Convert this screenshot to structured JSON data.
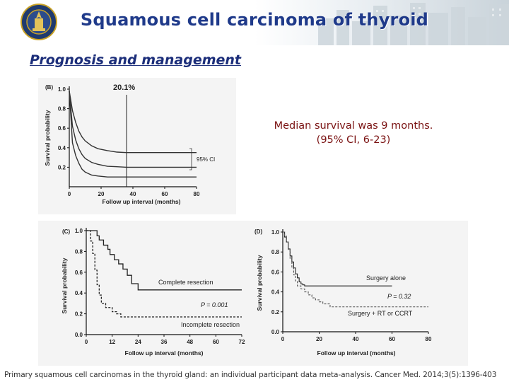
{
  "slide": {
    "title": "Squamous cell carcinoma of thyroid",
    "subtitle": "Prognosis and management",
    "stats": [
      "Median survival was 9 months.",
      "(95% CI, 6-23)"
    ],
    "citation": "Primary squamous cell carcinomas in the thyroid gland: an individual participant data meta-analysis. Cancer Med. 2014;3(5):1396-403"
  },
  "chart_data": [
    {
      "type": "line",
      "panel_label": "(B)",
      "annotation": "20.1%",
      "ci_label": "95% CI",
      "xlabel": "Follow up interval (months)",
      "ylabel": "Survival probability",
      "xlim": [
        0,
        80
      ],
      "ylim": [
        0,
        1.0
      ],
      "x_ticks": [
        "0",
        "20",
        "40",
        "60",
        "80"
      ],
      "y_ticks": [
        "0.2",
        "0.4",
        "0.6",
        "0.8",
        "1.0"
      ],
      "vertical_line_x": 36,
      "series": [
        {
          "x": [
            0,
            2,
            4,
            6,
            8,
            10,
            14,
            18,
            24,
            30,
            36,
            44,
            52,
            60,
            72,
            80
          ],
          "y": [
            0.98,
            0.78,
            0.66,
            0.57,
            0.51,
            0.47,
            0.42,
            0.39,
            0.37,
            0.355,
            0.35,
            0.35,
            0.35,
            0.35,
            0.35,
            0.35
          ]
        },
        {
          "x": [
            0,
            2,
            4,
            6,
            8,
            10,
            14,
            18,
            24,
            30,
            36,
            44,
            52,
            60,
            72,
            80
          ],
          "y": [
            0.98,
            0.62,
            0.48,
            0.39,
            0.33,
            0.29,
            0.25,
            0.23,
            0.21,
            0.205,
            0.2,
            0.2,
            0.2,
            0.2,
            0.2,
            0.2
          ]
        },
        {
          "x": [
            0,
            2,
            4,
            6,
            8,
            10,
            14,
            18,
            24,
            30,
            36,
            44,
            52,
            60,
            72,
            80
          ],
          "y": [
            0.98,
            0.45,
            0.32,
            0.24,
            0.18,
            0.15,
            0.12,
            0.11,
            0.1,
            0.1,
            0.1,
            0.1,
            0.1,
            0.1,
            0.1,
            0.1
          ]
        }
      ]
    },
    {
      "type": "line",
      "panel_label": "(C)",
      "xlabel": "Follow up interval (months)",
      "ylabel": "Survival probability",
      "xlim": [
        0,
        72
      ],
      "ylim": [
        0,
        1.0
      ],
      "x_ticks": [
        "0",
        "12",
        "24",
        "36",
        "48",
        "60",
        "72"
      ],
      "y_ticks": [
        "0.0",
        "0.2",
        "0.4",
        "0.6",
        "0.8",
        "1.0"
      ],
      "p_value": "P = 0.001",
      "series": [
        {
          "name": "Complete resection",
          "style": "solid",
          "x": [
            0,
            2,
            5,
            6,
            8,
            10,
            11,
            13,
            15,
            17,
            19,
            21,
            24,
            36,
            72
          ],
          "y": [
            1.0,
            1.0,
            0.95,
            0.91,
            0.86,
            0.82,
            0.77,
            0.72,
            0.68,
            0.63,
            0.57,
            0.49,
            0.43,
            0.43,
            0.43
          ]
        },
        {
          "name": "Incomplete resection",
          "style": "dashed",
          "x": [
            0,
            2,
            3,
            4,
            5,
            6,
            7,
            9,
            12,
            14,
            16,
            72
          ],
          "y": [
            1.0,
            0.9,
            0.78,
            0.62,
            0.48,
            0.38,
            0.3,
            0.26,
            0.22,
            0.2,
            0.17,
            0.17
          ]
        }
      ]
    },
    {
      "type": "line",
      "panel_label": "(D)",
      "xlabel": "Follow up interval (months)",
      "ylabel": "Survival probability",
      "xlim": [
        0,
        80
      ],
      "ylim": [
        0,
        1.0
      ],
      "x_ticks": [
        "0",
        "20",
        "40",
        "60",
        "80"
      ],
      "y_ticks": [
        "0.0",
        "0.2",
        "0.4",
        "0.6",
        "0.8",
        "1.0"
      ],
      "p_value": "P = 0.32",
      "series": [
        {
          "name": "Surgery alone",
          "style": "solid",
          "x": [
            0,
            1,
            2,
            3,
            4,
            5,
            6,
            7,
            8,
            9,
            10,
            11,
            12,
            14,
            60
          ],
          "y": [
            1.0,
            0.95,
            0.9,
            0.83,
            0.76,
            0.7,
            0.64,
            0.58,
            0.54,
            0.5,
            0.48,
            0.47,
            0.46,
            0.46,
            0.46
          ]
        },
        {
          "name": "Surgery + RT or CCRT",
          "style": "dashed",
          "x": [
            0,
            1,
            2,
            3,
            4,
            5,
            6,
            7,
            8,
            10,
            12,
            14,
            16,
            18,
            20,
            22,
            26,
            80
          ],
          "y": [
            1.0,
            0.96,
            0.9,
            0.82,
            0.73,
            0.64,
            0.57,
            0.51,
            0.46,
            0.43,
            0.4,
            0.37,
            0.34,
            0.32,
            0.3,
            0.28,
            0.25,
            0.25
          ]
        }
      ]
    }
  ]
}
